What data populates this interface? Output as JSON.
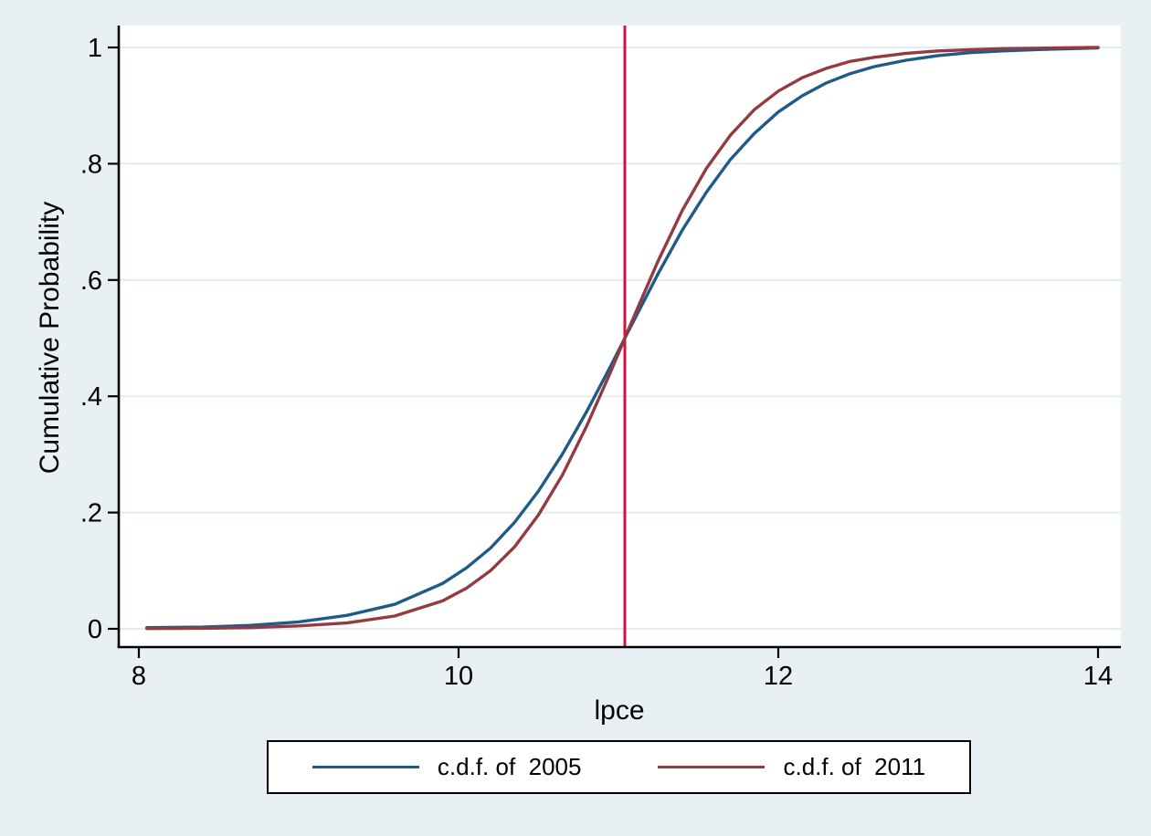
{
  "figure": {
    "background_color": "#e9f0f3",
    "plot_background": "#ffffff",
    "grid_color": "#e2edf2",
    "axis_color": "#000000",
    "text_color": "#000000"
  },
  "chart_data": {
    "type": "line",
    "title": "",
    "xlabel": "lpce",
    "ylabel": "Cumulative Probability",
    "xlim": [
      8,
      14
    ],
    "ylim": [
      0,
      1
    ],
    "grid": true,
    "legend_position": "bottom",
    "x_ticks": [
      {
        "value": 8,
        "label": "8"
      },
      {
        "value": 10,
        "label": "10"
      },
      {
        "value": 12,
        "label": "12"
      },
      {
        "value": 14,
        "label": "14"
      }
    ],
    "y_ticks": [
      {
        "value": 0,
        "label": "0"
      },
      {
        "value": 0.2,
        "label": ".2"
      },
      {
        "value": 0.4,
        "label": ".4"
      },
      {
        "value": 0.6,
        "label": ".6"
      },
      {
        "value": 0.8,
        "label": ".8"
      },
      {
        "value": 1,
        "label": "1"
      }
    ],
    "reference_line": {
      "axis": "x",
      "value": 11.04,
      "color": "#d11245"
    },
    "series": [
      {
        "name": "c.d.f. of  2005",
        "color": "#1f5b87",
        "x": [
          8.05,
          8.4,
          8.7,
          9.0,
          9.3,
          9.6,
          9.9,
          10.05,
          10.2,
          10.35,
          10.5,
          10.65,
          10.8,
          10.95,
          11.04,
          11.1,
          11.25,
          11.4,
          11.55,
          11.7,
          11.85,
          12.0,
          12.15,
          12.3,
          12.45,
          12.6,
          12.8,
          13.0,
          13.2,
          13.4,
          13.7,
          14.0
        ],
        "y": [
          0.002,
          0.003,
          0.006,
          0.012,
          0.023,
          0.042,
          0.078,
          0.105,
          0.139,
          0.183,
          0.237,
          0.301,
          0.373,
          0.451,
          0.5,
          0.532,
          0.612,
          0.686,
          0.751,
          0.807,
          0.852,
          0.889,
          0.917,
          0.939,
          0.955,
          0.967,
          0.978,
          0.986,
          0.991,
          0.994,
          0.997,
          0.999
        ]
      },
      {
        "name": "c.d.f. of  2011",
        "color": "#943b42",
        "x": [
          8.05,
          8.4,
          8.7,
          9.0,
          9.3,
          9.6,
          9.9,
          10.05,
          10.2,
          10.35,
          10.5,
          10.65,
          10.8,
          10.95,
          11.04,
          11.1,
          11.25,
          11.4,
          11.55,
          11.7,
          11.85,
          12.0,
          12.15,
          12.3,
          12.45,
          12.6,
          12.8,
          13.0,
          13.2,
          13.4,
          13.7,
          14.0
        ],
        "y": [
          0.0004,
          0.001,
          0.002,
          0.005,
          0.01,
          0.022,
          0.048,
          0.07,
          0.1,
          0.141,
          0.196,
          0.265,
          0.348,
          0.441,
          0.5,
          0.539,
          0.634,
          0.72,
          0.792,
          0.849,
          0.893,
          0.925,
          0.948,
          0.964,
          0.976,
          0.983,
          0.99,
          0.994,
          0.996,
          0.998,
          0.999,
          1.0
        ]
      }
    ]
  },
  "legend": {
    "entries": [
      {
        "label": "c.d.f. of  2005",
        "color": "#1f5b87"
      },
      {
        "label": "c.d.f. of  2011",
        "color": "#943b42"
      }
    ]
  }
}
